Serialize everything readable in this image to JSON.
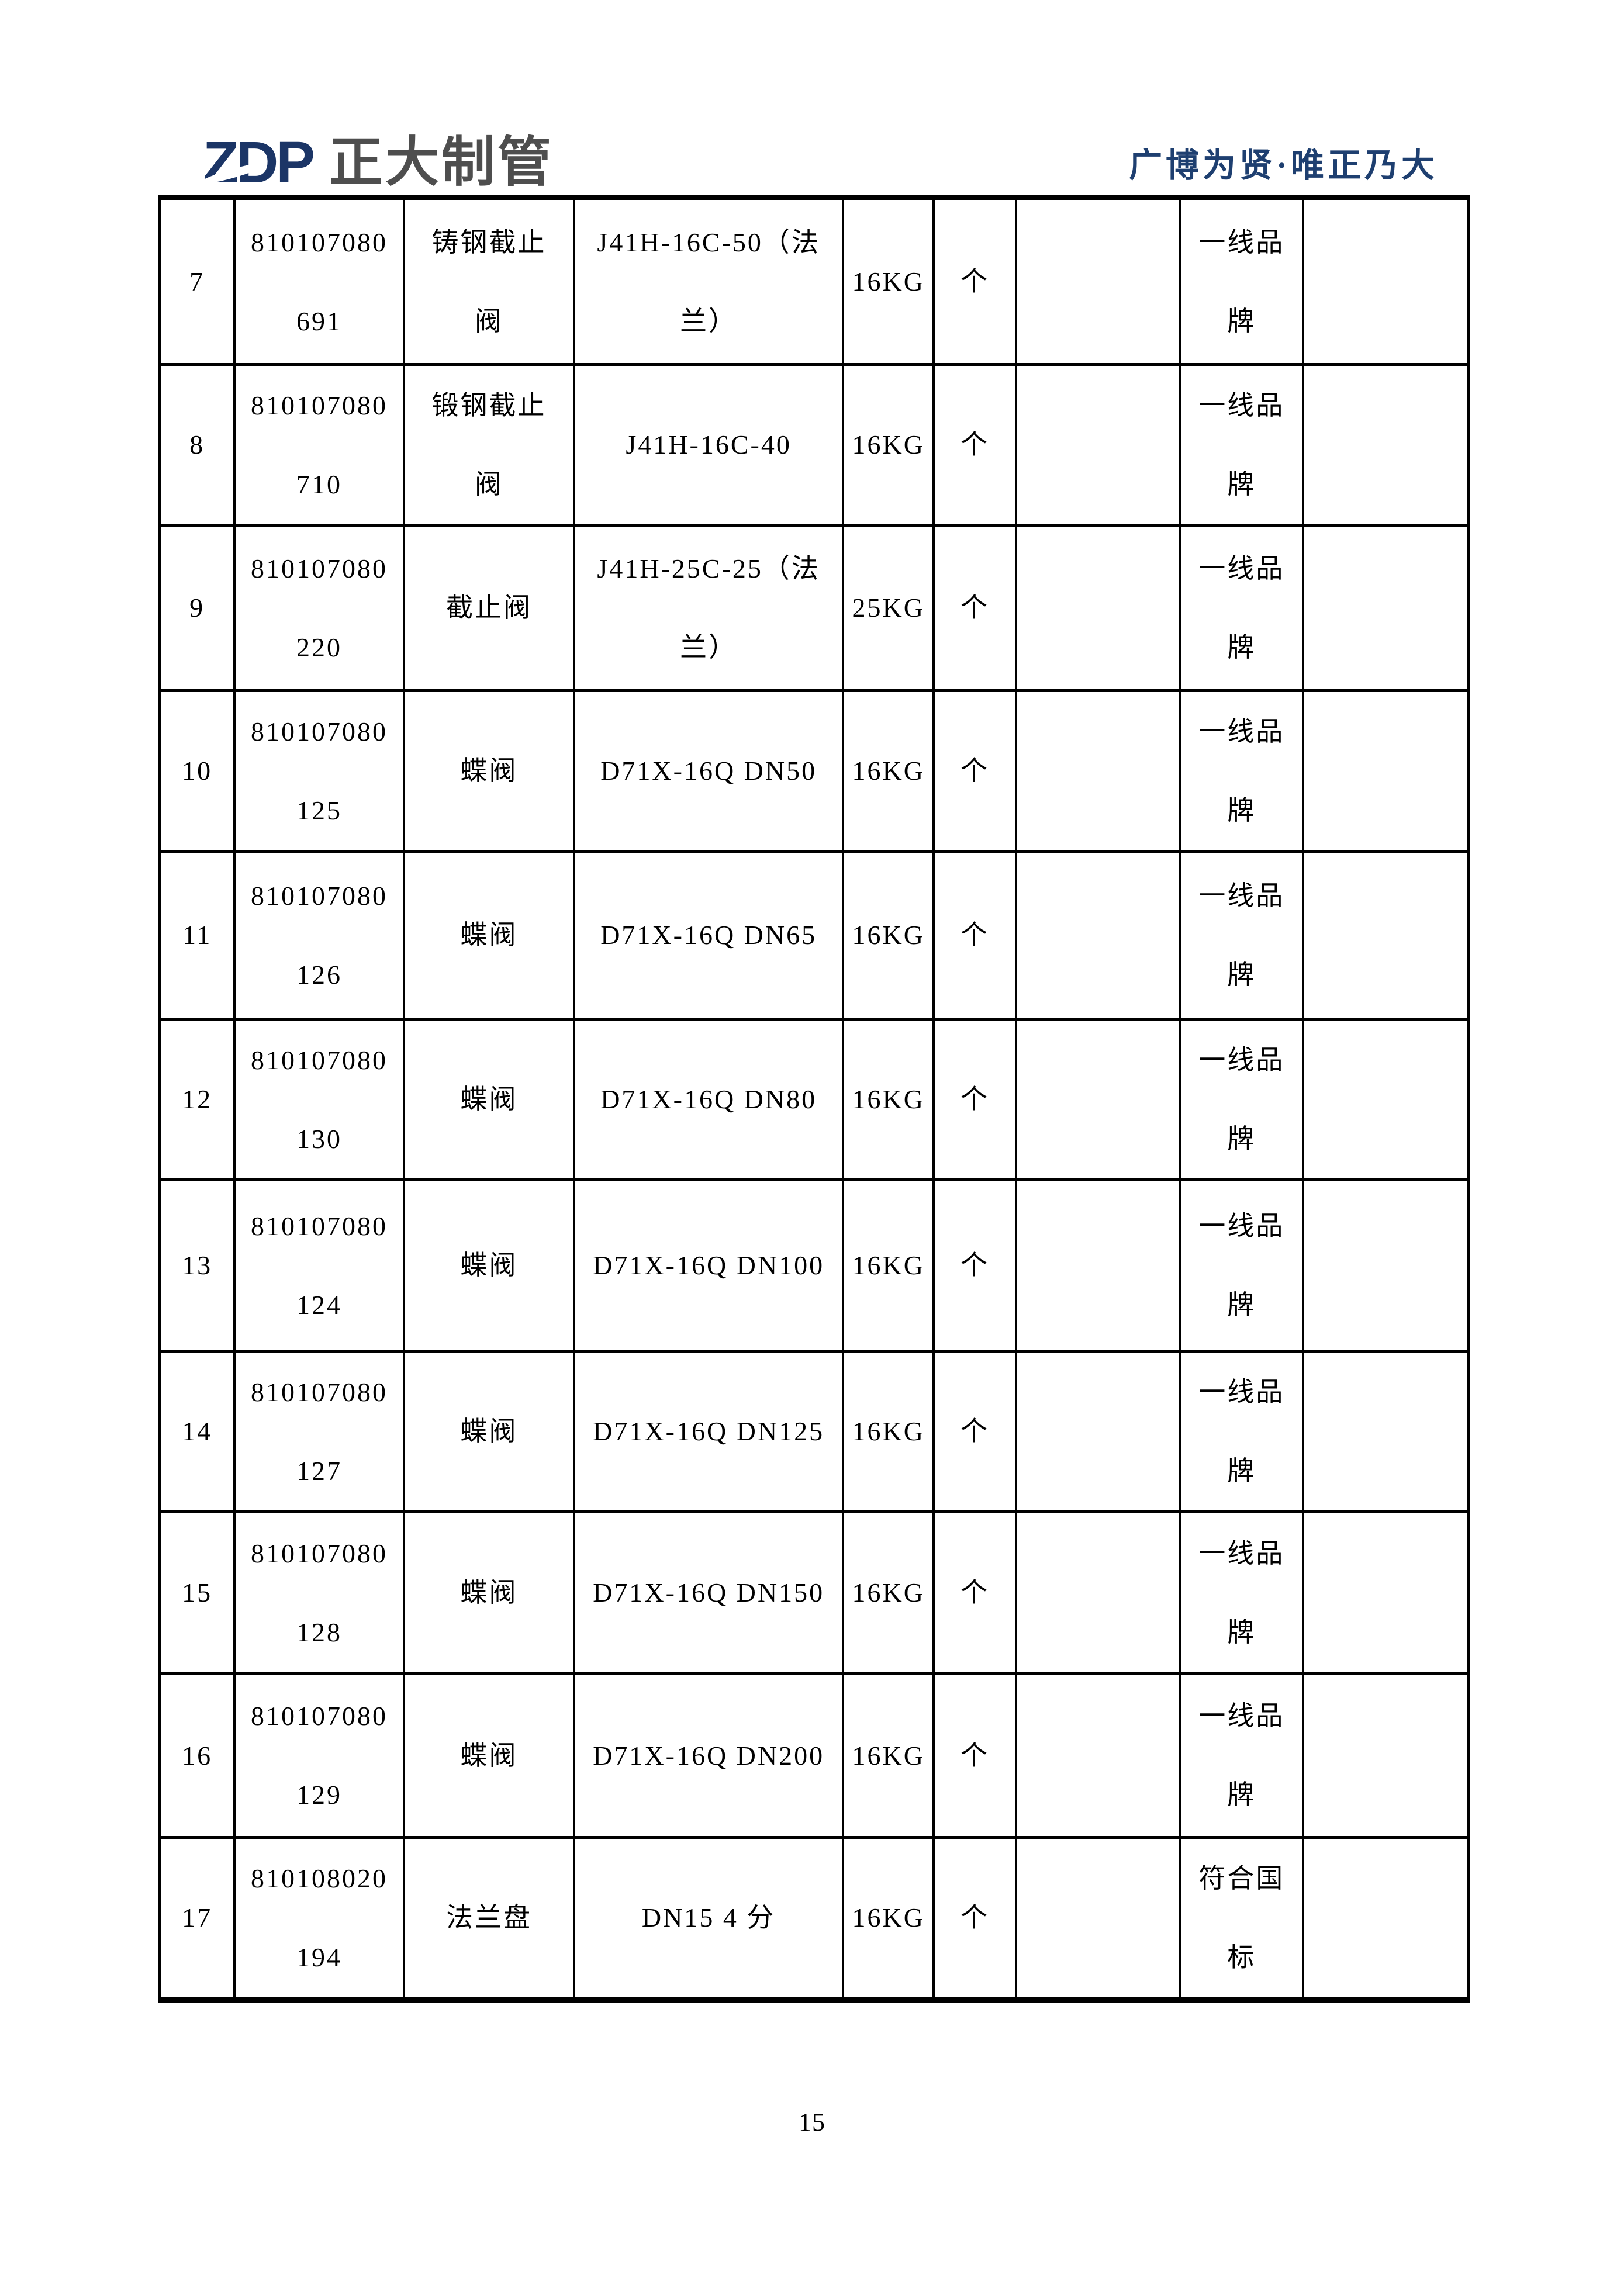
{
  "header": {
    "logo": {
      "abbr": "ZDP",
      "company": "正大制管"
    },
    "slogan": "广博为贤·唯正乃大"
  },
  "table": {
    "rows": [
      {
        "no": "7",
        "code": [
          "810107080",
          "691"
        ],
        "name": [
          "铸钢截止",
          "阀"
        ],
        "spec": [
          "J41H-16C-50（法",
          "兰）"
        ],
        "pressure": "16KG",
        "unit": "个",
        "col7": "",
        "brand": [
          "一线品",
          "牌"
        ],
        "col9": ""
      },
      {
        "no": "8",
        "code": [
          "810107080",
          "710"
        ],
        "name": [
          "锻钢截止",
          "阀"
        ],
        "spec": [
          "J41H-16C-40"
        ],
        "pressure": "16KG",
        "unit": "个",
        "col7": "",
        "brand": [
          "一线品",
          "牌"
        ],
        "col9": ""
      },
      {
        "no": "9",
        "code": [
          "810107080",
          "220"
        ],
        "name": [
          "截止阀"
        ],
        "spec": [
          "J41H-25C-25（法",
          "兰）"
        ],
        "pressure": "25KG",
        "unit": "个",
        "col7": "",
        "brand": [
          "一线品",
          "牌"
        ],
        "col9": ""
      },
      {
        "no": "10",
        "code": [
          "810107080",
          "125"
        ],
        "name": [
          "蝶阀"
        ],
        "spec": [
          "D71X-16Q DN50"
        ],
        "pressure": "16KG",
        "unit": "个",
        "col7": "",
        "brand": [
          "一线品",
          "牌"
        ],
        "col9": ""
      },
      {
        "no": "11",
        "code": [
          "810107080",
          "126"
        ],
        "name": [
          "蝶阀"
        ],
        "spec": [
          "D71X-16Q DN65"
        ],
        "pressure": "16KG",
        "unit": "个",
        "col7": "",
        "brand": [
          "一线品",
          "牌"
        ],
        "col9": ""
      },
      {
        "no": "12",
        "code": [
          "810107080",
          "130"
        ],
        "name": [
          "蝶阀"
        ],
        "spec": [
          "D71X-16Q DN80"
        ],
        "pressure": "16KG",
        "unit": "个",
        "col7": "",
        "brand": [
          "一线品",
          "牌"
        ],
        "col9": ""
      },
      {
        "no": "13",
        "code": [
          "810107080",
          "124"
        ],
        "name": [
          "蝶阀"
        ],
        "spec": [
          "D71X-16Q DN100"
        ],
        "pressure": "16KG",
        "unit": "个",
        "col7": "",
        "brand": [
          "一线品",
          "牌"
        ],
        "col9": ""
      },
      {
        "no": "14",
        "code": [
          "810107080",
          "127"
        ],
        "name": [
          "蝶阀"
        ],
        "spec": [
          "D71X-16Q DN125"
        ],
        "pressure": "16KG",
        "unit": "个",
        "col7": "",
        "brand": [
          "一线品",
          "牌"
        ],
        "col9": ""
      },
      {
        "no": "15",
        "code": [
          "810107080",
          "128"
        ],
        "name": [
          "蝶阀"
        ],
        "spec": [
          "D71X-16Q DN150"
        ],
        "pressure": "16KG",
        "unit": "个",
        "col7": "",
        "brand": [
          "一线品",
          "牌"
        ],
        "col9": ""
      },
      {
        "no": "16",
        "code": [
          "810107080",
          "129"
        ],
        "name": [
          "蝶阀"
        ],
        "spec": [
          "D71X-16Q DN200"
        ],
        "pressure": "16KG",
        "unit": "个",
        "col7": "",
        "brand": [
          "一线品",
          "牌"
        ],
        "col9": ""
      },
      {
        "no": "17",
        "code": [
          "810108020",
          "194"
        ],
        "name": [
          "法兰盘"
        ],
        "spec": [
          "DN15 4 分"
        ],
        "pressure": "16KG",
        "unit": "个",
        "col7": "",
        "brand": [
          "符合国",
          "标"
        ],
        "col9": ""
      }
    ]
  },
  "footer": {
    "page_number": "15"
  }
}
